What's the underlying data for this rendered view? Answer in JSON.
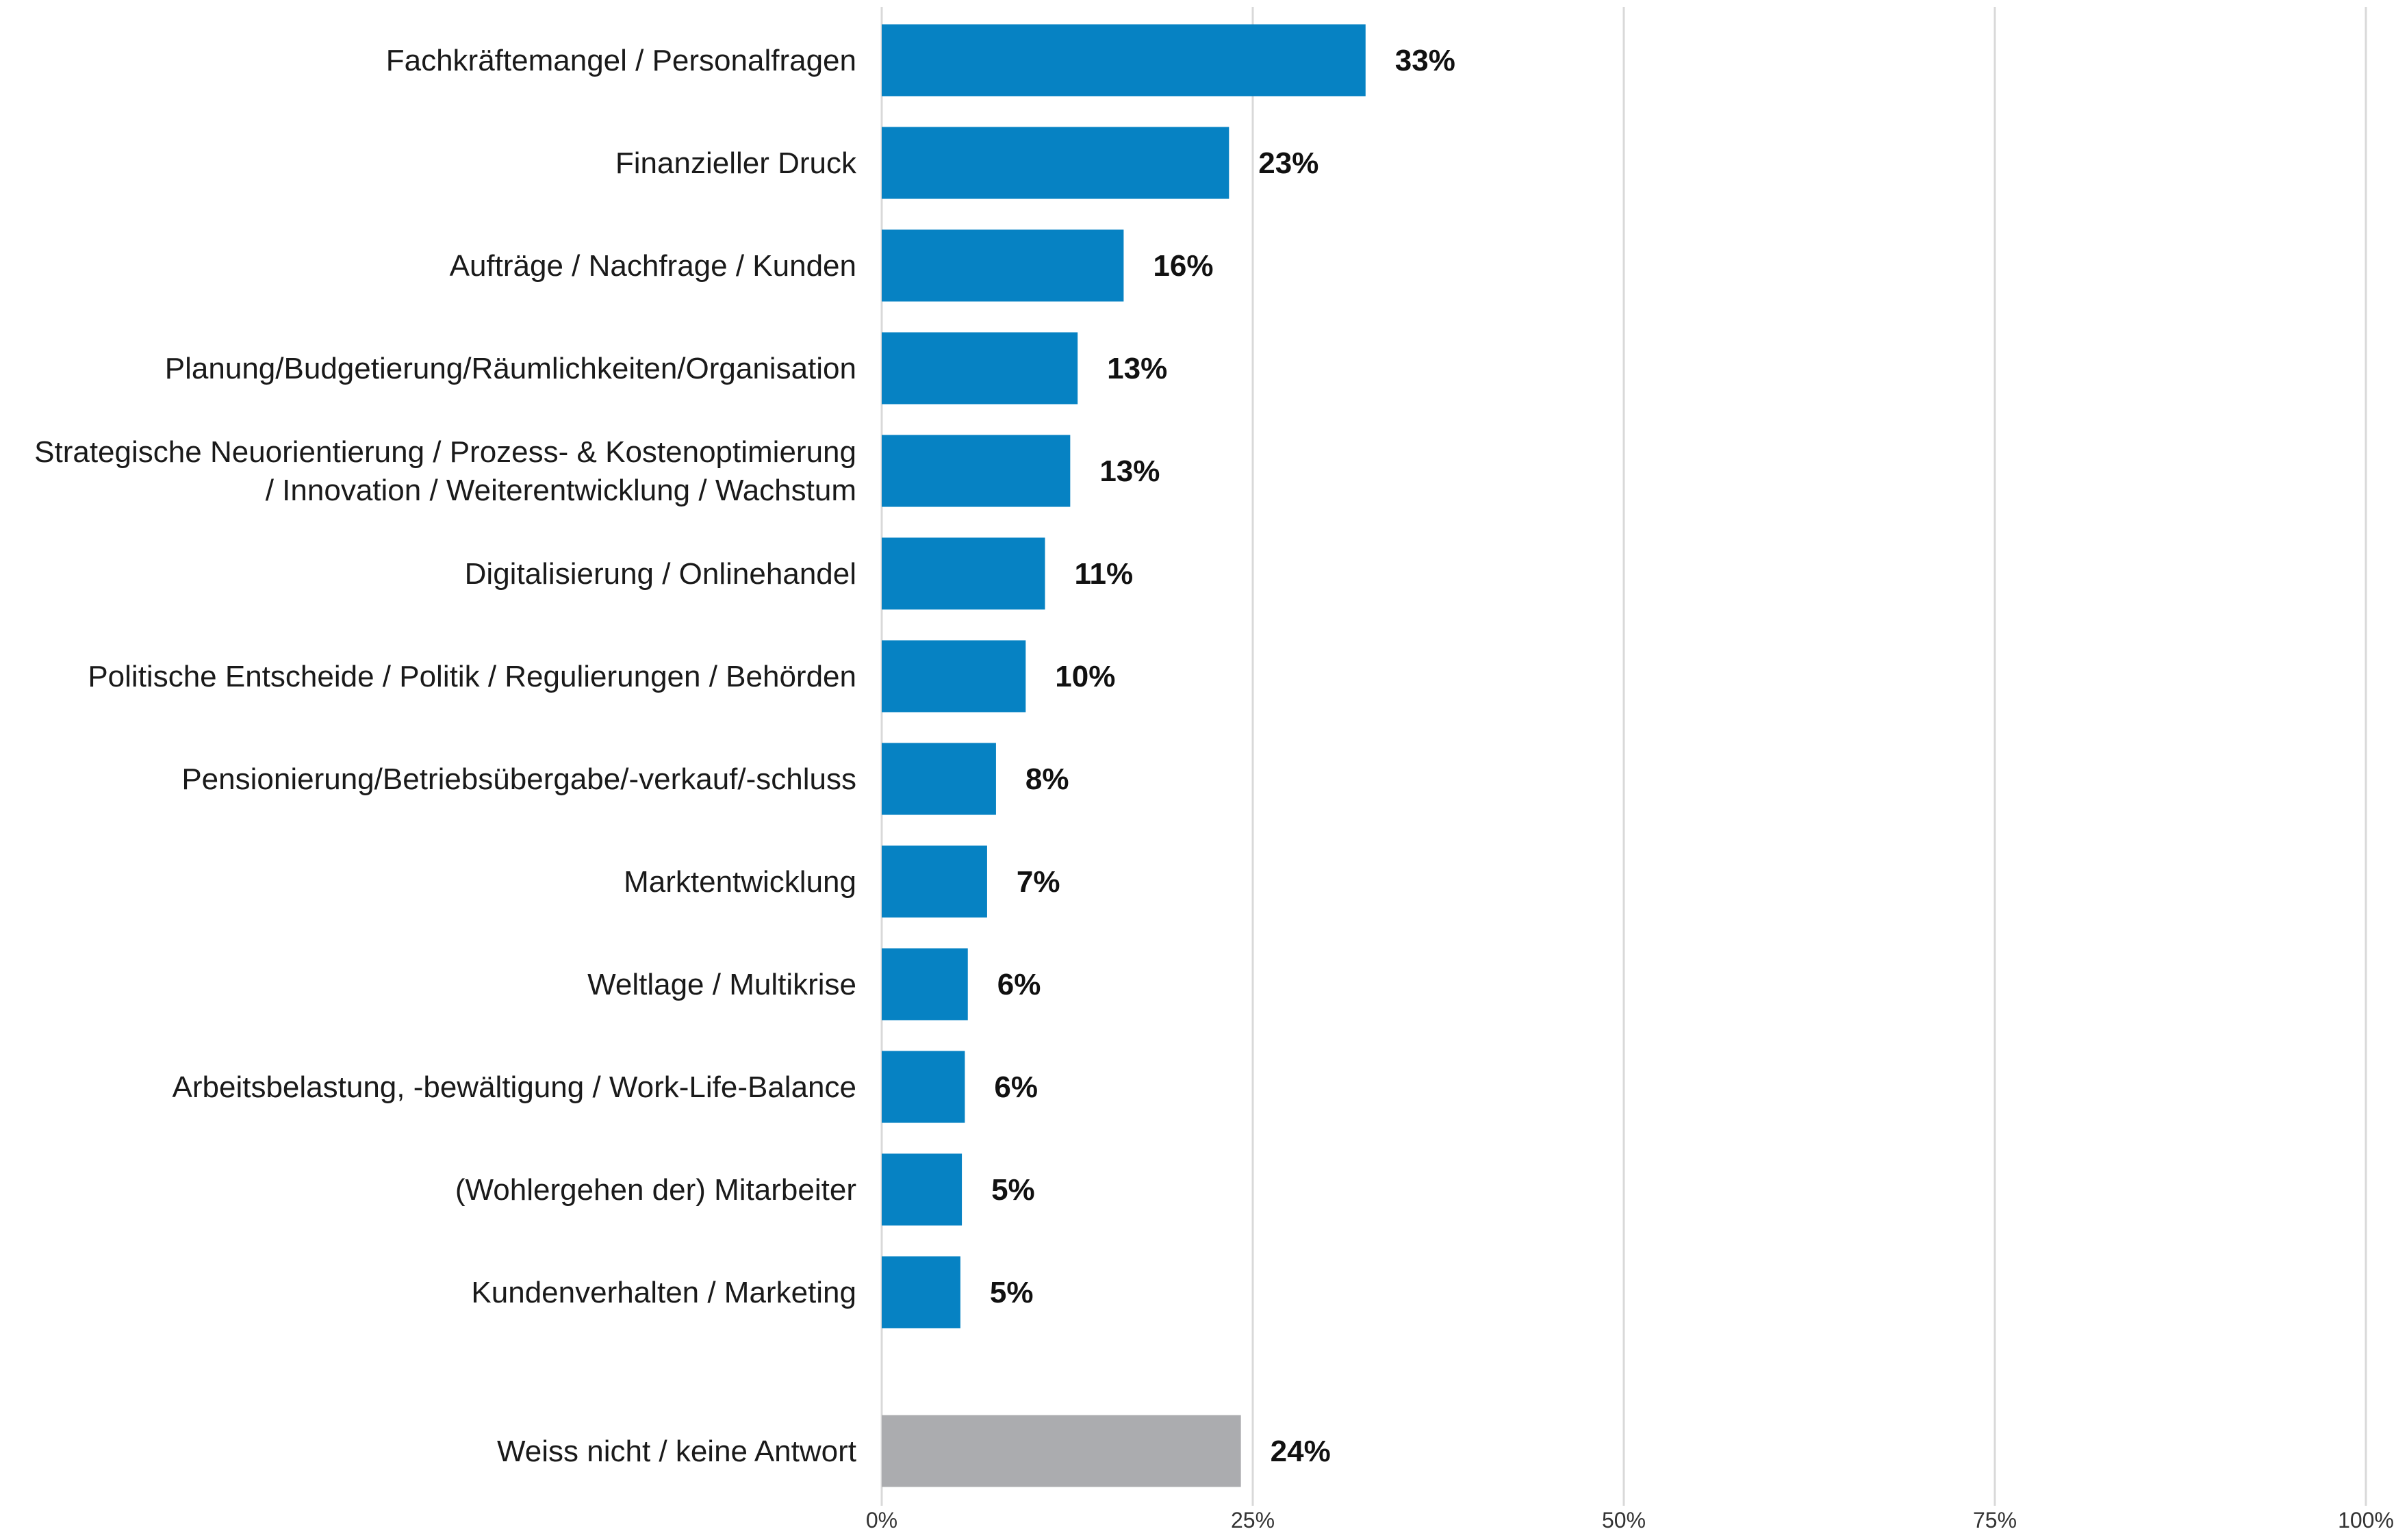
{
  "chart_data": {
    "type": "bar",
    "orientation": "horizontal",
    "title": "",
    "xlabel": "",
    "ylabel": "",
    "xlim": [
      0,
      100
    ],
    "grid": true,
    "legend": "none",
    "categories": [
      [
        "Fachkräftemangel / Personalfragen"
      ],
      [
        "Finanzieller Druck"
      ],
      [
        "Aufträge / Nachfrage / Kunden"
      ],
      [
        "Planung/Budgetierung/Räumlichkeiten/Organisation"
      ],
      [
        "Strategische Neuorientierung / Prozess- & Kostenoptimierung",
        "/ Innovation / Weiterentwicklung / Wachstum"
      ],
      [
        "Digitalisierung / Onlinehandel"
      ],
      [
        "Politische Entscheide / Politik / Regulierungen / Behörden"
      ],
      [
        "Pensionierung/Betriebsübergabe/-verkauf/-schluss"
      ],
      [
        "Marktentwicklung"
      ],
      [
        "Weltlage / Multikrise"
      ],
      [
        "Arbeitsbelastung, -bewältigung / Work-Life-Balance"
      ],
      [
        "(Wohlergehen der) Mitarbeiter"
      ],
      [
        "Kundenverhalten / Marketing"
      ],
      [
        "Weiss nicht / keine Antwort"
      ]
    ],
    "values": [
      32.6,
      23.4,
      16.3,
      13.2,
      12.7,
      11.0,
      9.7,
      7.7,
      7.1,
      5.8,
      5.6,
      5.4,
      5.3,
      24.2
    ],
    "value_labels": [
      "33%",
      "23%",
      "16%",
      "13%",
      "13%",
      "11%",
      "10%",
      "8%",
      "7%",
      "6%",
      "6%",
      "5%",
      "5%",
      "24%"
    ],
    "ticks": [
      0,
      25,
      50,
      75,
      100
    ],
    "tick_labels": [
      "0%",
      "25%",
      "50%",
      "75%",
      "100%"
    ],
    "colors": {
      "primary": "#0682C3",
      "no_answer": "#ABACAF",
      "grid": "#D9D9D9"
    }
  }
}
